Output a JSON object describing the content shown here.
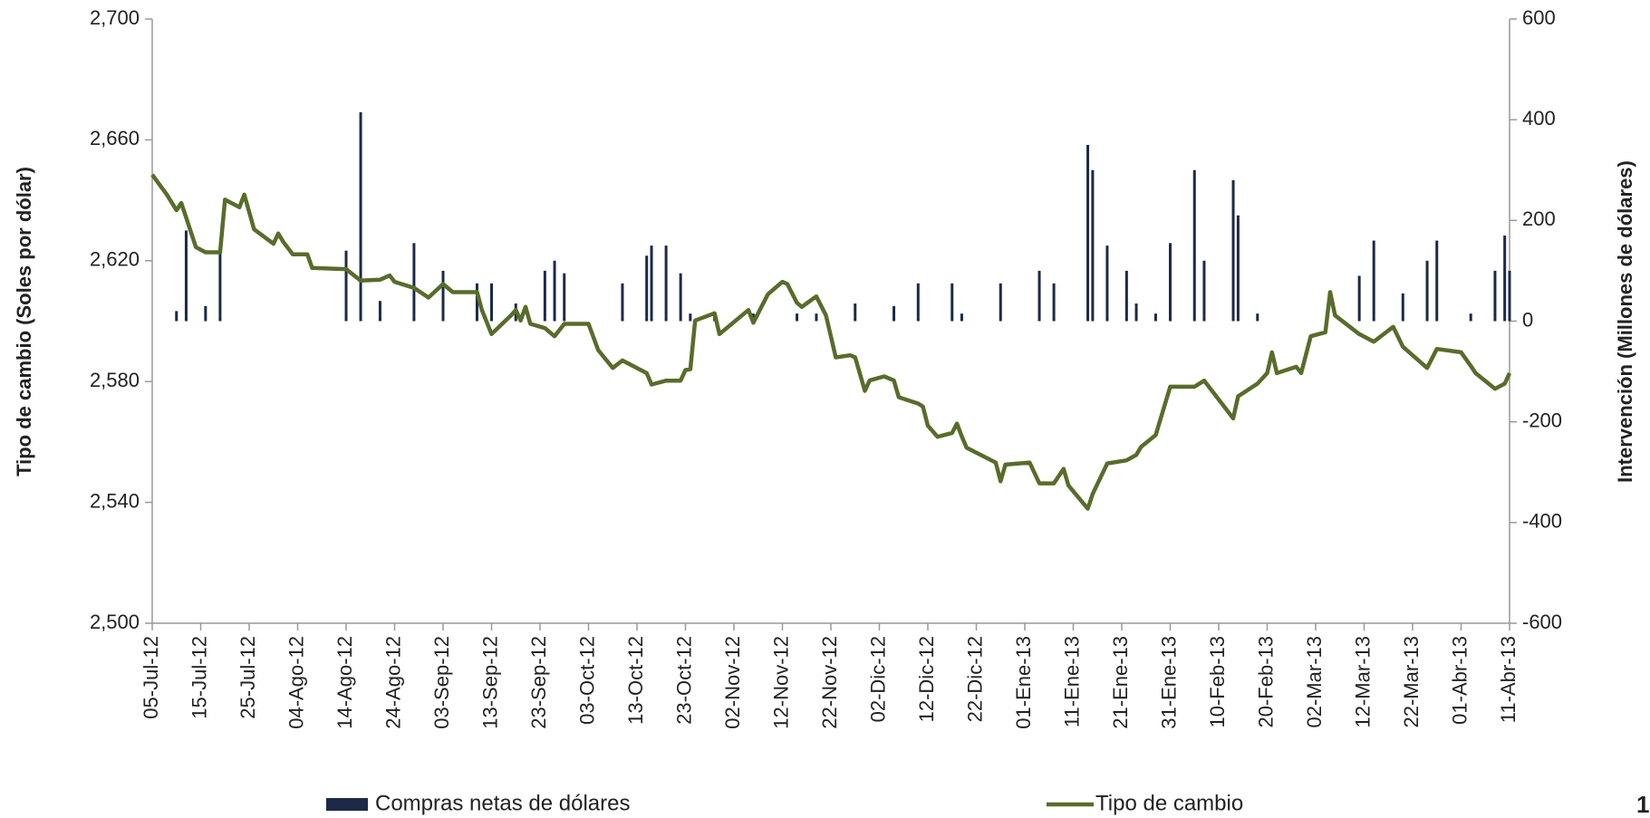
{
  "chart_data": {
    "type": "combo",
    "page_number": "1",
    "y_label": "Tipo de cambio (Soles por dólar)",
    "y2_label": "Intervención (Millones de dólares)",
    "x": [
      "2012-07-05",
      "2012-07-08",
      "2012-07-10",
      "2012-07-11",
      "2012-07-12",
      "2012-07-14",
      "2012-07-16",
      "2012-07-19",
      "2012-07-20",
      "2012-07-23",
      "2012-07-24",
      "2012-07-26",
      "2012-07-30",
      "2012-07-31",
      "2012-08-01",
      "2012-08-03",
      "2012-08-06",
      "2012-08-07",
      "2012-08-14",
      "2012-08-17",
      "2012-08-21",
      "2012-08-23",
      "2012-08-24",
      "2012-08-28",
      "2012-08-31",
      "2012-09-03",
      "2012-09-05",
      "2012-09-10",
      "2012-09-11",
      "2012-09-13",
      "2012-09-17",
      "2012-09-18",
      "2012-09-19",
      "2012-09-20",
      "2012-09-21",
      "2012-09-24",
      "2012-09-26",
      "2012-09-28",
      "2012-10-03",
      "2012-10-05",
      "2012-10-08",
      "2012-10-10",
      "2012-10-15",
      "2012-10-16",
      "2012-10-19",
      "2012-10-22",
      "2012-10-23",
      "2012-10-24",
      "2012-10-25",
      "2012-10-29",
      "2012-10-30",
      "2012-11-05",
      "2012-11-06",
      "2012-11-09",
      "2012-11-12",
      "2012-11-13",
      "2012-11-15",
      "2012-11-16",
      "2012-11-19",
      "2012-11-21",
      "2012-11-23",
      "2012-11-26",
      "2012-11-27",
      "2012-11-29",
      "2012-11-30",
      "2012-12-03",
      "2012-12-05",
      "2012-12-06",
      "2012-12-10",
      "2012-12-11",
      "2012-12-12",
      "2012-12-14",
      "2012-12-17",
      "2012-12-18",
      "2012-12-19",
      "2012-12-20",
      "2012-12-26",
      "2012-12-27",
      "2012-12-28",
      "2013-01-02",
      "2013-01-04",
      "2013-01-07",
      "2013-01-09",
      "2013-01-10",
      "2013-01-14",
      "2013-01-15",
      "2013-01-18",
      "2013-01-22",
      "2013-01-24",
      "2013-01-25",
      "2013-01-28",
      "2013-01-31",
      "2013-02-01",
      "2013-02-05",
      "2013-02-07",
      "2013-02-11",
      "2013-02-13",
      "2013-02-14",
      "2013-02-18",
      "2013-02-20",
      "2013-02-21",
      "2013-02-22",
      "2013-02-26",
      "2013-02-27",
      "2013-03-01",
      "2013-03-04",
      "2013-03-05",
      "2013-03-06",
      "2013-03-11",
      "2013-03-14",
      "2013-03-18",
      "2013-03-20",
      "2013-03-25",
      "2013-03-27",
      "2013-04-01",
      "2013-04-03",
      "2013-04-04",
      "2013-04-08",
      "2013-04-10",
      "2013-04-11"
    ],
    "series": [
      {
        "name": "Compras netas de dólares",
        "type": "bar",
        "axis": "y2",
        "color": "#1c2a48",
        "values": [
          null,
          null,
          20,
          null,
          180,
          null,
          30,
          135,
          null,
          null,
          null,
          null,
          null,
          null,
          null,
          null,
          null,
          null,
          140,
          415,
          40,
          null,
          null,
          155,
          null,
          100,
          null,
          75,
          null,
          75,
          null,
          35,
          null,
          null,
          null,
          100,
          120,
          95,
          null,
          null,
          null,
          75,
          130,
          150,
          150,
          95,
          null,
          15,
          null,
          15,
          null,
          null,
          15,
          null,
          null,
          null,
          15,
          null,
          15,
          null,
          null,
          null,
          35,
          null,
          null,
          null,
          30,
          null,
          75,
          null,
          null,
          null,
          75,
          null,
          15,
          null,
          null,
          75,
          null,
          null,
          100,
          75,
          null,
          null,
          350,
          300,
          150,
          100,
          35,
          null,
          15,
          155,
          null,
          300,
          120,
          null,
          280,
          210,
          15,
          null,
          null,
          null,
          null,
          null,
          null,
          null,
          null,
          null,
          90,
          160,
          null,
          55,
          120,
          160,
          null,
          15,
          null,
          100,
          170,
          100
        ]
      },
      {
        "name": "Tipo de cambio",
        "type": "line",
        "color": "#586c2b",
        "values": [
          2.6485,
          2.6419,
          2.6367,
          2.6391,
          2.6343,
          2.6245,
          2.6228,
          2.6228,
          2.6402,
          2.6377,
          2.6419,
          2.6304,
          2.6256,
          2.629,
          2.6263,
          2.6221,
          2.6221,
          2.6176,
          2.6172,
          2.6134,
          2.6137,
          2.6151,
          2.613,
          2.611,
          2.6078,
          2.6123,
          2.6096,
          2.6096,
          2.6037,
          2.5957,
          2.6019,
          2.6037,
          2.6002,
          2.6047,
          2.5991,
          2.5977,
          2.595,
          2.5991,
          2.5991,
          2.5904,
          2.5845,
          2.587,
          2.5828,
          2.579,
          2.5803,
          2.5803,
          2.5838,
          2.5841,
          2.6002,
          2.6026,
          2.5957,
          2.6037,
          2.5995,
          2.6089,
          2.613,
          2.6123,
          2.6061,
          2.6047,
          2.6082,
          2.6019,
          2.588,
          2.5887,
          2.588,
          2.5769,
          2.5804,
          2.5817,
          2.5804,
          2.5748,
          2.5727,
          2.5717,
          2.5654,
          2.5617,
          2.563,
          2.5661,
          2.5619,
          2.5581,
          2.5532,
          2.547,
          2.5525,
          2.5532,
          2.5463,
          2.5463,
          2.5511,
          2.5456,
          2.5379,
          2.5428,
          2.5529,
          2.5539,
          2.5557,
          2.5584,
          2.5623,
          2.5783,
          2.5783,
          2.5783,
          2.5803,
          2.572,
          2.5678,
          2.5751,
          2.5793,
          2.5828,
          2.5897,
          2.5828,
          2.5849,
          2.5828,
          2.595,
          2.5963,
          2.6096,
          2.6019,
          2.5957,
          2.5932,
          2.5981,
          2.5915,
          2.5845,
          2.5908,
          2.5897,
          2.5852,
          2.5828,
          2.5776,
          2.5793,
          2.5828
        ]
      }
    ],
    "xlim": [
      "2012-07-05",
      "2013-04-11"
    ],
    "xticks": [
      {
        "value": "2012-07-05",
        "label": "05-Jul-12"
      },
      {
        "value": "2012-07-15",
        "label": "15-Jul-12"
      },
      {
        "value": "2012-07-25",
        "label": "25-Jul-12"
      },
      {
        "value": "2012-08-04",
        "label": "04-Ago-12"
      },
      {
        "value": "2012-08-14",
        "label": "14-Ago-12"
      },
      {
        "value": "2012-08-24",
        "label": "24-Ago-12"
      },
      {
        "value": "2012-09-03",
        "label": "03-Sep-12"
      },
      {
        "value": "2012-09-13",
        "label": "13-Sep-12"
      },
      {
        "value": "2012-09-23",
        "label": "23-Sep-12"
      },
      {
        "value": "2012-10-03",
        "label": "03-Oct-12"
      },
      {
        "value": "2012-10-13",
        "label": "13-Oct-12"
      },
      {
        "value": "2012-10-23",
        "label": "23-Oct-12"
      },
      {
        "value": "2012-11-02",
        "label": "02-Nov-12"
      },
      {
        "value": "2012-11-12",
        "label": "12-Nov-12"
      },
      {
        "value": "2012-11-22",
        "label": "22-Nov-12"
      },
      {
        "value": "2012-12-02",
        "label": "02-Dic-12"
      },
      {
        "value": "2012-12-12",
        "label": "12-Dic-12"
      },
      {
        "value": "2012-12-22",
        "label": "22-Dic-12"
      },
      {
        "value": "2013-01-01",
        "label": "01-Ene-13"
      },
      {
        "value": "2013-01-11",
        "label": "11-Ene-13"
      },
      {
        "value": "2013-01-21",
        "label": "21-Ene-13"
      },
      {
        "value": "2013-01-31",
        "label": "31-Ene-13"
      },
      {
        "value": "2013-02-10",
        "label": "10-Feb-13"
      },
      {
        "value": "2013-02-20",
        "label": "20-Feb-13"
      },
      {
        "value": "2013-03-02",
        "label": "02-Mar-13"
      },
      {
        "value": "2013-03-12",
        "label": "12-Mar-13"
      },
      {
        "value": "2013-03-22",
        "label": "22-Mar-13"
      },
      {
        "value": "2013-04-01",
        "label": "01-Abr-13"
      },
      {
        "value": "2013-04-11",
        "label": "11-Abr-13"
      }
    ],
    "ylim": [
      2.5,
      2.7
    ],
    "yticks": [
      {
        "value": 2.5,
        "label": "2,500"
      },
      {
        "value": 2.54,
        "label": "2,540"
      },
      {
        "value": 2.58,
        "label": "2,580"
      },
      {
        "value": 2.62,
        "label": "2,620"
      },
      {
        "value": 2.66,
        "label": "2,660"
      },
      {
        "value": 2.7,
        "label": "2,700"
      }
    ],
    "y2lim": [
      -600,
      600
    ],
    "y2ticks": [
      -600,
      -400,
      -200,
      0,
      200,
      400,
      600
    ],
    "legend": "bottom"
  }
}
